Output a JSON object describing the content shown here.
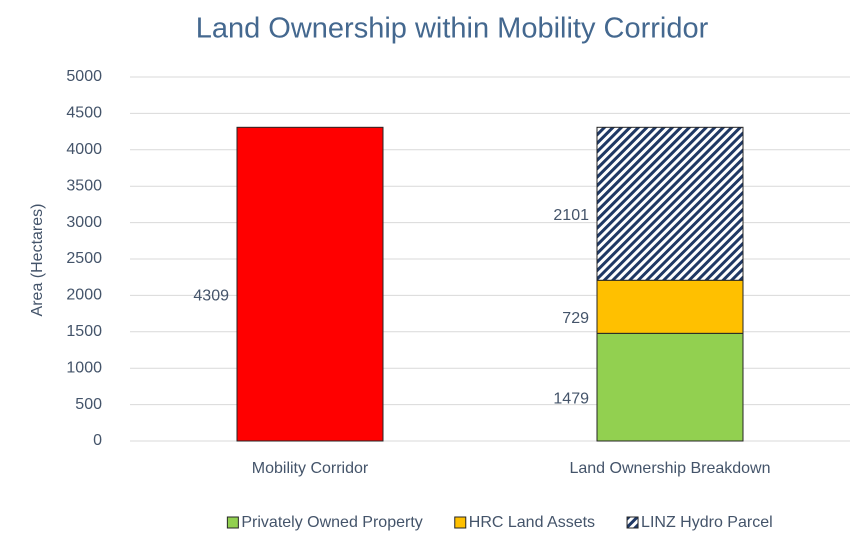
{
  "chart_data": {
    "type": "stacked_bar",
    "title": "Land Ownership within Mobility Corridor",
    "y_label": "Area (Hectares)",
    "categories": [
      "Mobility Corridor",
      "Land Ownership Breakdown"
    ],
    "series": [
      {
        "color": "#ff0000",
        "values": [
          4309,
          null
        ]
      },
      {
        "name": "Privately Owned Property",
        "color": "#92d050",
        "values": [
          null,
          1479
        ]
      },
      {
        "name": "HRC Land Assets",
        "color": "#ffc000",
        "values": [
          null,
          729
        ]
      },
      {
        "name": "LINZ Hydro Parcel",
        "color": "#1f3864",
        "pattern": "diagonal-hatch",
        "values": [
          null,
          2101
        ]
      }
    ],
    "ylim": [
      0,
      5000
    ],
    "yticks": [
      0,
      500,
      1000,
      1500,
      2000,
      2500,
      3000,
      3500,
      4000,
      4500,
      5000
    ],
    "grid": true,
    "legend": "bottom"
  }
}
